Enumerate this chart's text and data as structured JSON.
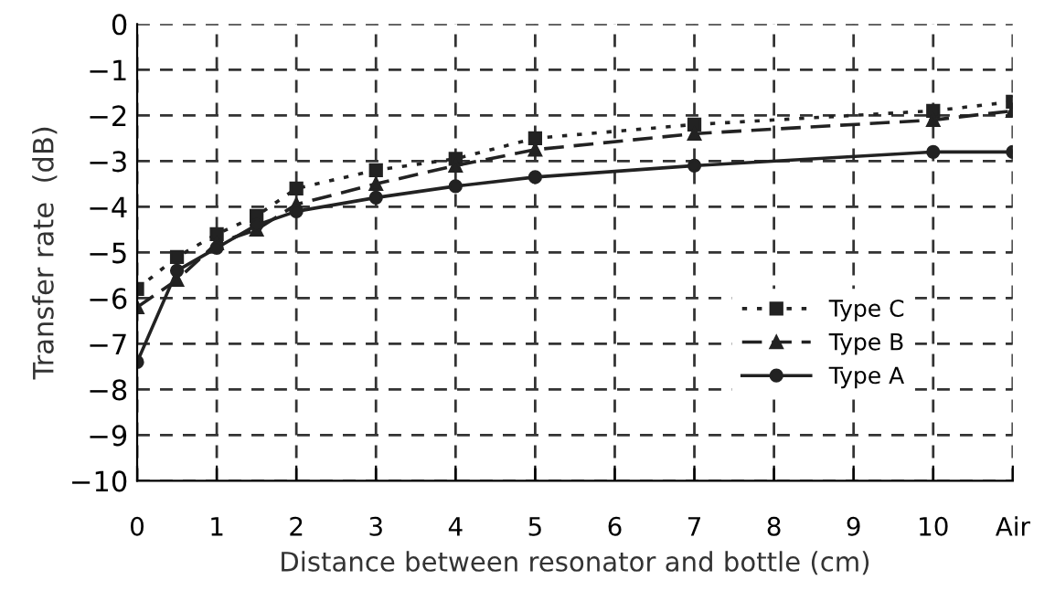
{
  "chart_data": {
    "type": "line",
    "xlabel": "Distance between resonator and bottle (cm)",
    "ylabel": "Transfer rate  (dB)",
    "x": [
      0,
      0.5,
      1,
      1.5,
      2,
      3,
      4,
      5,
      7,
      10,
      11
    ],
    "xlim": [
      0,
      11
    ],
    "xticks": [
      0,
      1,
      2,
      3,
      4,
      5,
      6,
      7,
      8,
      9,
      10,
      {
        "value": 11,
        "label": "Air"
      }
    ],
    "ylim": [
      -10,
      0
    ],
    "yticks": [
      -10,
      -9,
      -8,
      -7,
      -6,
      -5,
      -4,
      -3,
      -2,
      -1,
      0
    ],
    "grid": true,
    "legend": "right",
    "series": [
      {
        "name": "Type C",
        "color": "#222222",
        "marker": "square",
        "line_style": "dotted",
        "values": [
          -5.8,
          -5.1,
          -4.6,
          -4.2,
          -3.6,
          -3.2,
          -2.95,
          -2.5,
          -2.2,
          -1.9,
          -1.7
        ]
      },
      {
        "name": "Type B",
        "color": "#222222",
        "marker": "triangle",
        "line_style": "dashed",
        "values": [
          -6.2,
          -5.6,
          -4.8,
          -4.5,
          -3.95,
          -3.5,
          -3.1,
          -2.75,
          -2.4,
          -2.1,
          -1.9
        ]
      },
      {
        "name": "Type A",
        "color": "#222222",
        "marker": "circle",
        "line_style": "solid",
        "values": [
          -7.4,
          -5.4,
          -4.9,
          -4.4,
          -4.1,
          -3.8,
          -3.55,
          -3.35,
          -3.1,
          -2.8,
          -2.8
        ]
      }
    ]
  }
}
